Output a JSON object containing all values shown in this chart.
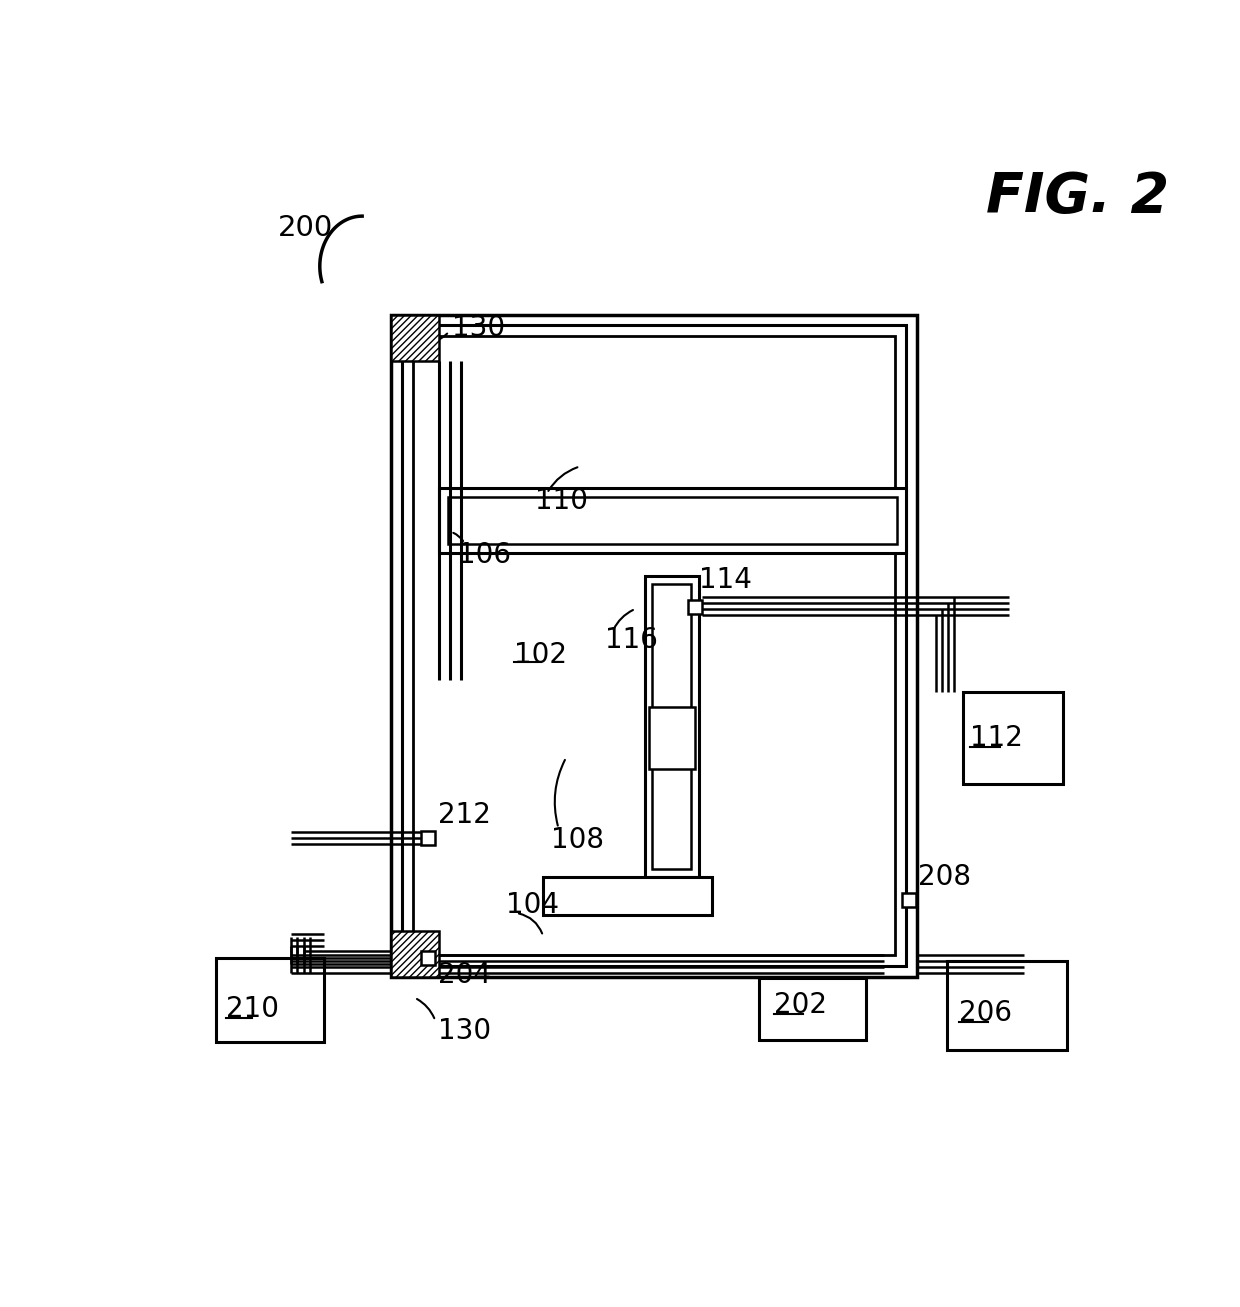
{
  "bg_color": "#ffffff",
  "lc": "#000000",
  "fig_label": "FIG. 2"
}
